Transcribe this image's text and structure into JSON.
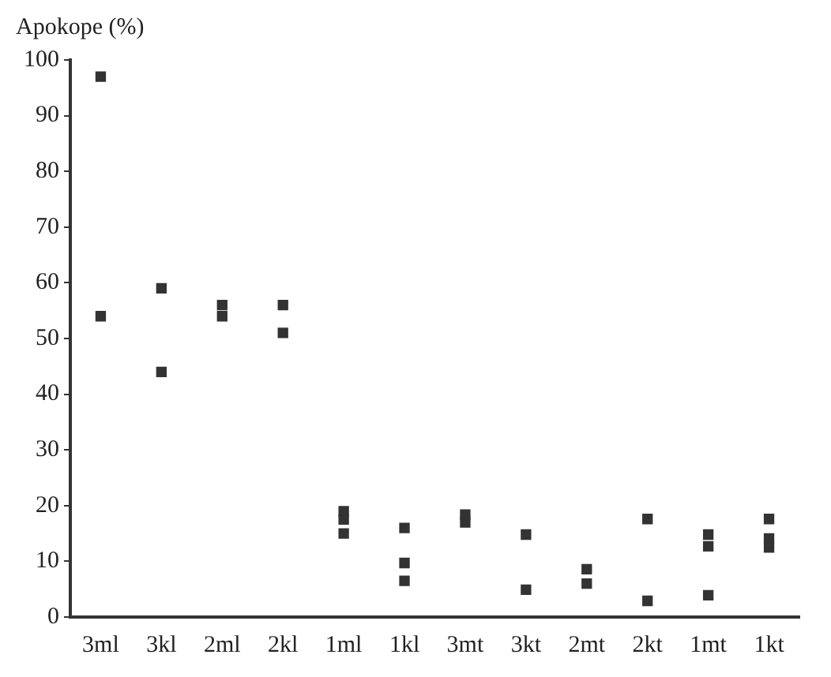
{
  "chart_data": {
    "type": "scatter",
    "ylabel": "Apokope (%)",
    "categories": [
      "3ml",
      "3kl",
      "2ml",
      "2kl",
      "1ml",
      "1kl",
      "3mt",
      "3kt",
      "2mt",
      "2kt",
      "1mt",
      "1kt"
    ],
    "series": [
      {
        "color": "#333333",
        "x": [
          "3ml",
          "3ml",
          "3kl",
          "3kl",
          "2ml",
          "2ml",
          "2kl",
          "2kl",
          "1ml",
          "1ml",
          "1ml",
          "1kl",
          "1kl",
          "1kl",
          "3mt",
          "3mt",
          "3kt",
          "3kt",
          "2mt",
          "2mt",
          "2kt",
          "2kt",
          "1mt",
          "1mt",
          "1mt",
          "1kt",
          "1kt",
          "1kt"
        ],
        "values": [
          97,
          54,
          59,
          44,
          56,
          54,
          56,
          51,
          19,
          17.5,
          15,
          16,
          9.7,
          6.5,
          18.4,
          17,
          14.8,
          4.9,
          8.6,
          6,
          17.6,
          2.9,
          14.8,
          12.7,
          3.9,
          17.6,
          14.1,
          12.5
        ]
      }
    ],
    "ylim": [
      0,
      100
    ],
    "yticks": [
      0,
      10,
      20,
      30,
      40,
      50,
      60,
      70,
      80,
      90,
      100
    ],
    "grid": false,
    "legend": false,
    "marker": "square"
  }
}
